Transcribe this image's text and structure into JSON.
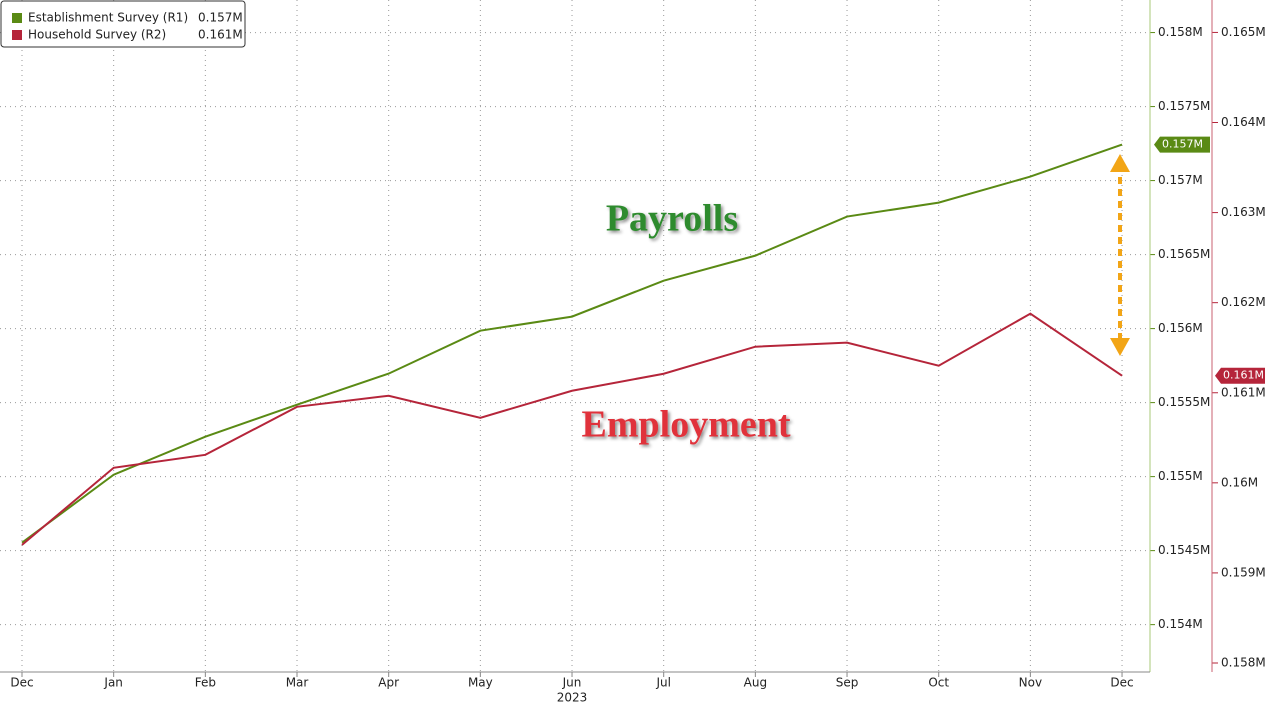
{
  "chart_data": {
    "type": "line",
    "categories": [
      "Dec",
      "Jan",
      "Feb",
      "Mar",
      "Apr",
      "May",
      "Jun",
      "Jul",
      "Aug",
      "Sep",
      "Oct",
      "Nov",
      "Dec"
    ],
    "x_group_label": "2023",
    "series": [
      {
        "name": "Establishment Survey (R1)",
        "last_label": "0.157M",
        "color": "#5a8a14",
        "axis": "y",
        "values": [
          0.154554,
          0.155013,
          0.15527,
          0.155486,
          0.155696,
          0.155986,
          0.156081,
          0.156324,
          0.156493,
          0.156757,
          0.156851,
          0.157027,
          0.157243
        ]
      },
      {
        "name": "Household Survey (R2)",
        "last_label": "0.161M",
        "color": "#b5253a",
        "axis": "y2",
        "values": [
          0.159311,
          0.160167,
          0.160311,
          0.160844,
          0.160967,
          0.160722,
          0.161022,
          0.161211,
          0.161511,
          0.161556,
          0.1613,
          0.161878,
          0.161189
        ]
      }
    ],
    "ylim": [
      0.15368,
      0.15822
    ],
    "yticks": [
      {
        "value": 0.154,
        "label": "0.154M"
      },
      {
        "value": 0.1545,
        "label": "0.1545M"
      },
      {
        "value": 0.155,
        "label": "0.155M"
      },
      {
        "value": 0.1555,
        "label": "0.1555M"
      },
      {
        "value": 0.156,
        "label": "0.156M"
      },
      {
        "value": 0.1565,
        "label": "0.1565M"
      },
      {
        "value": 0.157,
        "label": "0.157M"
      },
      {
        "value": 0.1575,
        "label": "0.1575M"
      },
      {
        "value": 0.158,
        "label": "0.158M"
      }
    ],
    "y2lim": [
      0.1579,
      0.16536
    ],
    "y2ticks": [
      {
        "value": 0.158,
        "label": "0.158M"
      },
      {
        "value": 0.159,
        "label": "0.159M"
      },
      {
        "value": 0.16,
        "label": "0.16M"
      },
      {
        "value": 0.161,
        "label": "0.161M"
      },
      {
        "value": 0.162,
        "label": "0.162M"
      },
      {
        "value": 0.163,
        "label": "0.163M"
      },
      {
        "value": 0.164,
        "label": "0.164M"
      },
      {
        "value": 0.165,
        "label": "0.165M"
      }
    ],
    "annotations": [
      {
        "text": "Payrolls",
        "color": "#2e8b2e"
      },
      {
        "text": "Employment",
        "color": "#e0303a"
      }
    ],
    "grid": true,
    "legend": "top-left"
  }
}
